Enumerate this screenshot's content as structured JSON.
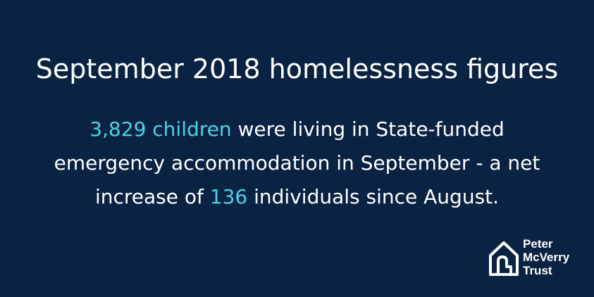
{
  "headline": "September 2018 homelessness figures",
  "statement": {
    "highlight_1": "3,829 children",
    "text_1": " were living in State-funded emergency accommodation in September - a net increase of ",
    "highlight_2": "136",
    "text_2": " individuals since August."
  },
  "logo": {
    "icon": "house-icon",
    "line_1": "Peter",
    "line_2": "McVerry",
    "line_3": "Trust"
  },
  "colors": {
    "background": "#0b2343",
    "text": "#ffffff",
    "highlight": "#4fd1e6"
  }
}
